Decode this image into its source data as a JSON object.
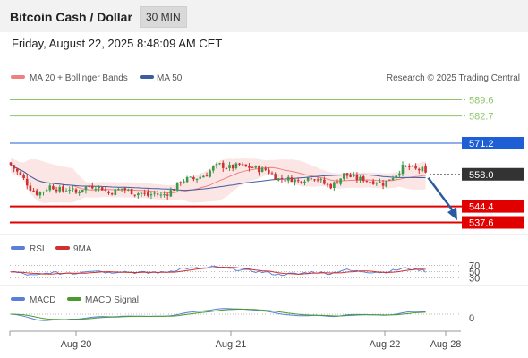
{
  "header": {
    "title": "Bitcoin Cash / Dollar",
    "interval": "30 MIN"
  },
  "datetime": "Friday, August 22, 2025 8:48:09 AM CET",
  "legend": {
    "ma20": "MA 20 + Bollinger Bands",
    "ma50": "MA 50",
    "rsi": "RSI",
    "rsi_ma": "9MA",
    "macd": "MACD",
    "macd_signal": "MACD Signal"
  },
  "credit": "Research © 2025 Trading Central",
  "colors": {
    "green_level": "#8fc46a",
    "resistance": "#1f5fd6",
    "support": "#e00000",
    "current": "#333333",
    "arrow": "#2a5aa0",
    "ma20": "#f08080",
    "ma50": "#3a5fa0",
    "bull": "#3a9a4a",
    "bear": "#d03030",
    "rsi": "#5b7fd6",
    "macd": "#5b7fd6",
    "macd_signal": "#4a9a30"
  },
  "chart_data": [
    {
      "type": "candlestick",
      "title": "Bitcoin Cash / Dollar",
      "ylim": [
        534,
        597
      ],
      "levels": [
        {
          "value": 589.6,
          "label": "589.6",
          "kind": "target"
        },
        {
          "value": 582.7,
          "label": "582.7",
          "kind": "target"
        },
        {
          "value": 571.2,
          "label": "571.2",
          "kind": "resistance"
        },
        {
          "value": 558.0,
          "label": "558.0",
          "kind": "current"
        },
        {
          "value": 544.4,
          "label": "544.4",
          "kind": "support"
        },
        {
          "value": 537.6,
          "label": "537.6",
          "kind": "support"
        }
      ],
      "x_ticks": [
        "Aug 20",
        "Aug 21",
        "Aug 22",
        "Aug 28"
      ],
      "forecast_arrow": {
        "from": 558.0,
        "to": 538.5
      },
      "close_anchors": [
        [
          0,
          562
        ],
        [
          2,
          559
        ],
        [
          4,
          556
        ],
        [
          6,
          552
        ],
        [
          8,
          550
        ],
        [
          10,
          551
        ],
        [
          12,
          553
        ],
        [
          14,
          552
        ],
        [
          16,
          551
        ],
        [
          18,
          552
        ],
        [
          20,
          550
        ],
        [
          22,
          552
        ],
        [
          24,
          553
        ],
        [
          26,
          553
        ],
        [
          28,
          552
        ],
        [
          30,
          550
        ],
        [
          32,
          551
        ],
        [
          34,
          552
        ],
        [
          36,
          551
        ],
        [
          38,
          550
        ],
        [
          40,
          550
        ],
        [
          42,
          549
        ],
        [
          44,
          550
        ],
        [
          46,
          549
        ],
        [
          48,
          550
        ],
        [
          50,
          552
        ],
        [
          52,
          555
        ],
        [
          54,
          556
        ],
        [
          56,
          556
        ],
        [
          58,
          557
        ],
        [
          60,
          558
        ],
        [
          62,
          561
        ],
        [
          64,
          562
        ],
        [
          66,
          561
        ],
        [
          68,
          561
        ],
        [
          70,
          562
        ],
        [
          72,
          561
        ],
        [
          74,
          561
        ],
        [
          76,
          560
        ],
        [
          78,
          560
        ],
        [
          80,
          558
        ],
        [
          82,
          556
        ],
        [
          84,
          556
        ],
        [
          86,
          556
        ],
        [
          88,
          555
        ],
        [
          90,
          556
        ],
        [
          92,
          557
        ],
        [
          94,
          556
        ],
        [
          96,
          554
        ],
        [
          98,
          553
        ],
        [
          100,
          555
        ],
        [
          102,
          558
        ],
        [
          104,
          557
        ],
        [
          106,
          556
        ],
        [
          108,
          556
        ],
        [
          110,
          555
        ],
        [
          112,
          555
        ],
        [
          114,
          554
        ],
        [
          116,
          556
        ],
        [
          118,
          558
        ],
        [
          120,
          561
        ],
        [
          122,
          561
        ],
        [
          124,
          560
        ],
        [
          126,
          560
        ],
        [
          127,
          558
        ]
      ]
    },
    {
      "type": "line",
      "name": "RSI",
      "ylim": [
        20,
        80
      ],
      "ticks": [
        "70",
        "50",
        "30"
      ]
    },
    {
      "type": "line",
      "name": "MACD",
      "ticks": [
        "0"
      ]
    }
  ]
}
